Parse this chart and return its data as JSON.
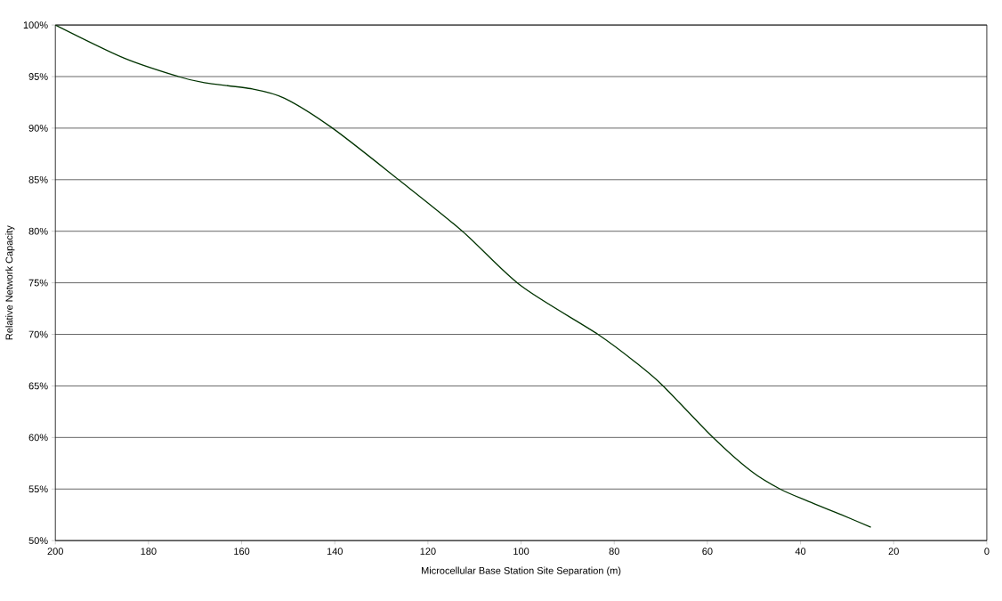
{
  "chart_data": {
    "type": "line",
    "xlabel": "Microcellular Base Station Site Separation (m)",
    "ylabel": "Relative Network Capacity",
    "x": [
      200,
      185.3,
      173.6,
      168,
      157.7,
      150.8,
      140.5,
      126.3,
      112.6,
      100,
      83.5,
      74.9,
      69.5,
      58.8,
      50.5,
      44.4,
      38.3,
      31.2,
      24.9
    ],
    "series": [
      {
        "color": "#003300",
        "values": [
          100,
          96.8,
          95,
          94.4,
          93.8,
          92.9,
          90,
          85,
          80,
          74.7,
          70,
          67.1,
          65,
          60,
          56.7,
          55,
          53.8,
          52.5,
          51.3
        ]
      }
    ],
    "xlim": [
      200,
      0
    ],
    "ylim": [
      50,
      100
    ],
    "xticks": [
      200,
      180,
      160,
      140,
      120,
      100,
      80,
      60,
      40,
      20,
      0
    ],
    "yticks": [
      {
        "value": 50,
        "label": "50%"
      },
      {
        "value": 55,
        "label": "55%"
      },
      {
        "value": 60,
        "label": "60%"
      },
      {
        "value": 65,
        "label": "65%"
      },
      {
        "value": 70,
        "label": "70%"
      },
      {
        "value": 75,
        "label": "75%"
      },
      {
        "value": 80,
        "label": "80%"
      },
      {
        "value": 85,
        "label": "85%"
      },
      {
        "value": 90,
        "label": "90%"
      },
      {
        "value": 95,
        "label": "95%"
      },
      {
        "value": 100,
        "label": "100%"
      }
    ],
    "grid": "y",
    "marker": "none",
    "line_style": "solid"
  }
}
